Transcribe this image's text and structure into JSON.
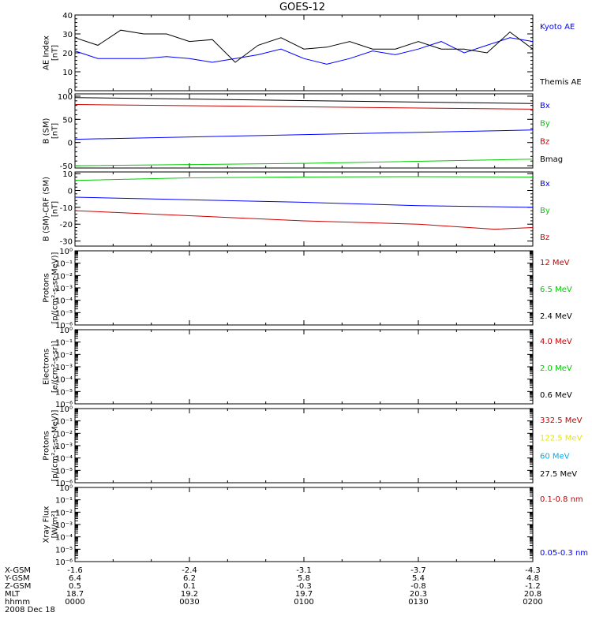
{
  "title": "GOES-12",
  "date": "2008 Dec 18",
  "colors": {
    "axis": "#000000",
    "blue": "#0000ff",
    "green": "#00cc00",
    "red": "#cc0000",
    "yellow": "#e6e600",
    "cyan": "#00aaee",
    "black": "#000000"
  },
  "chart_data": [
    {
      "type": "line",
      "ylabel": "AE Index\n[nT]",
      "ylim": [
        0,
        40
      ],
      "yticks": [
        "0",
        "10",
        "20",
        "30",
        "40"
      ],
      "grid": false,
      "legend_placement": "right",
      "series": [
        {
          "name": "Kyoto AE",
          "color": "blue",
          "x": [
            0,
            6,
            12,
            18,
            24,
            30,
            36,
            42,
            48,
            54,
            60,
            66,
            72,
            78,
            84,
            90,
            96,
            102,
            108,
            114,
            120
          ],
          "values": [
            21,
            17,
            17,
            17,
            18,
            17,
            15,
            17,
            19,
            22,
            17,
            14,
            17,
            21,
            19,
            22,
            26,
            20,
            24,
            28,
            26
          ]
        },
        {
          "name": "Themis AE",
          "color": "black",
          "x": [
            0,
            6,
            12,
            18,
            24,
            30,
            36,
            42,
            48,
            54,
            60,
            66,
            72,
            78,
            84,
            90,
            96,
            102,
            108,
            114,
            120
          ],
          "values": [
            28,
            24,
            32,
            30,
            30,
            26,
            27,
            15,
            24,
            28,
            22,
            23,
            26,
            22,
            22,
            26,
            22,
            22,
            20,
            31,
            22
          ]
        }
      ]
    },
    {
      "type": "line",
      "ylabel": "B (SM)\n[nT]",
      "ylim": [
        -55,
        105
      ],
      "yticks": [
        "-50",
        "0",
        "50",
        "100"
      ],
      "grid": false,
      "legend_placement": "right",
      "series": [
        {
          "name": "Bx",
          "color": "blue",
          "x": [
            0,
            120
          ],
          "values": [
            7,
            27
          ]
        },
        {
          "name": "By",
          "color": "green",
          "x": [
            0,
            60,
            120
          ],
          "values": [
            -50,
            -45,
            -36
          ]
        },
        {
          "name": "Bz",
          "color": "red",
          "x": [
            0,
            120
          ],
          "values": [
            82,
            72
          ]
        },
        {
          "name": "Bmag",
          "color": "black",
          "x": [
            0,
            120
          ],
          "values": [
            97,
            84
          ]
        }
      ]
    },
    {
      "type": "line",
      "ylabel": "B (SM)-CRF (SM)\n[nT]",
      "ylim": [
        -33,
        11
      ],
      "yticks": [
        "-30",
        "-20",
        "-10",
        "0",
        "10"
      ],
      "grid": false,
      "legend_placement": "right",
      "series": [
        {
          "name": "Bx",
          "color": "blue",
          "x": [
            0,
            30,
            60,
            90,
            120
          ],
          "values": [
            -4,
            -5.5,
            -7,
            -9,
            -10
          ]
        },
        {
          "name": "By",
          "color": "green",
          "x": [
            0,
            30,
            60,
            90,
            120
          ],
          "values": [
            6,
            7.5,
            8,
            8.2,
            8
          ]
        },
        {
          "name": "Bz",
          "color": "red",
          "x": [
            0,
            30,
            60,
            90,
            110,
            120
          ],
          "values": [
            -12,
            -15,
            -18,
            -20,
            -23,
            -22
          ]
        }
      ]
    },
    {
      "type": "line",
      "ylabel": "Protons\n[p/(cm²-s-sr-MeV)]",
      "scale": "log",
      "ylim": [
        1e-06,
        1
      ],
      "yticks": [
        "10⁻⁶",
        "10⁻⁵",
        "10⁻⁴",
        "10⁻³",
        "10⁻²",
        "10⁻¹",
        "10⁰"
      ],
      "legend_placement": "right",
      "series": [
        {
          "name": "12 MeV",
          "color": "red"
        },
        {
          "name": "6.5 MeV",
          "color": "green"
        },
        {
          "name": "2.4 MeV",
          "color": "black"
        }
      ]
    },
    {
      "type": "line",
      "ylabel": "Electrons\n[e/(cm²-s-sr)]",
      "scale": "log",
      "ylim": [
        1e-06,
        1
      ],
      "yticks": [
        "10⁻⁶",
        "10⁻⁵",
        "10⁻⁴",
        "10⁻³",
        "10⁻²",
        "10⁻¹",
        "10⁰"
      ],
      "legend_placement": "right",
      "series": [
        {
          "name": "4.0 MeV",
          "color": "red"
        },
        {
          "name": "2.0 MeV",
          "color": "green"
        },
        {
          "name": "0.6 MeV",
          "color": "black"
        }
      ]
    },
    {
      "type": "line",
      "ylabel": "Protons\n[p/(cm²-s-sr-MeV)]",
      "scale": "log",
      "ylim": [
        1e-06,
        1
      ],
      "yticks": [
        "10⁻⁶",
        "10⁻⁵",
        "10⁻⁴",
        "10⁻³",
        "10⁻²",
        "10⁻¹",
        "10⁰"
      ],
      "legend_placement": "right",
      "series": [
        {
          "name": "332.5 MeV",
          "color": "red"
        },
        {
          "name": "122.5 MeV",
          "color": "yellow"
        },
        {
          "name": "60 MeV",
          "color": "cyan"
        },
        {
          "name": "27.5 MeV",
          "color": "black"
        }
      ]
    },
    {
      "type": "line",
      "ylabel": "Xray Flux\n[W/m²]",
      "scale": "log",
      "ylim": [
        1e-06,
        1
      ],
      "yticks": [
        "10⁻⁶",
        "10⁻⁵",
        "10⁻⁴",
        "10⁻³",
        "10⁻²",
        "10⁻¹",
        "10⁰"
      ],
      "legend_placement": "right",
      "series": [
        {
          "name": "0.1-0.8 nm",
          "color": "red"
        },
        {
          "name": "0.05-0.3 nm",
          "color": "blue"
        }
      ]
    }
  ],
  "x_axis_table": {
    "labels": [
      "X-GSM",
      "Y-GSM",
      "Z-GSM",
      "MLT",
      "hhmm"
    ],
    "columns": [
      [
        "-1.6",
        "6.4",
        "0.5",
        "18.7",
        "0000"
      ],
      [
        "-2.4",
        "6.2",
        "0.1",
        "19.2",
        "0030"
      ],
      [
        "-3.1",
        "5.8",
        "-0.3",
        "19.7",
        "0100"
      ],
      [
        "-3.7",
        "5.4",
        "-0.8",
        "20.3",
        "0130"
      ],
      [
        "-4.3",
        "4.8",
        "-1.2",
        "20.8",
        "0200"
      ]
    ]
  }
}
